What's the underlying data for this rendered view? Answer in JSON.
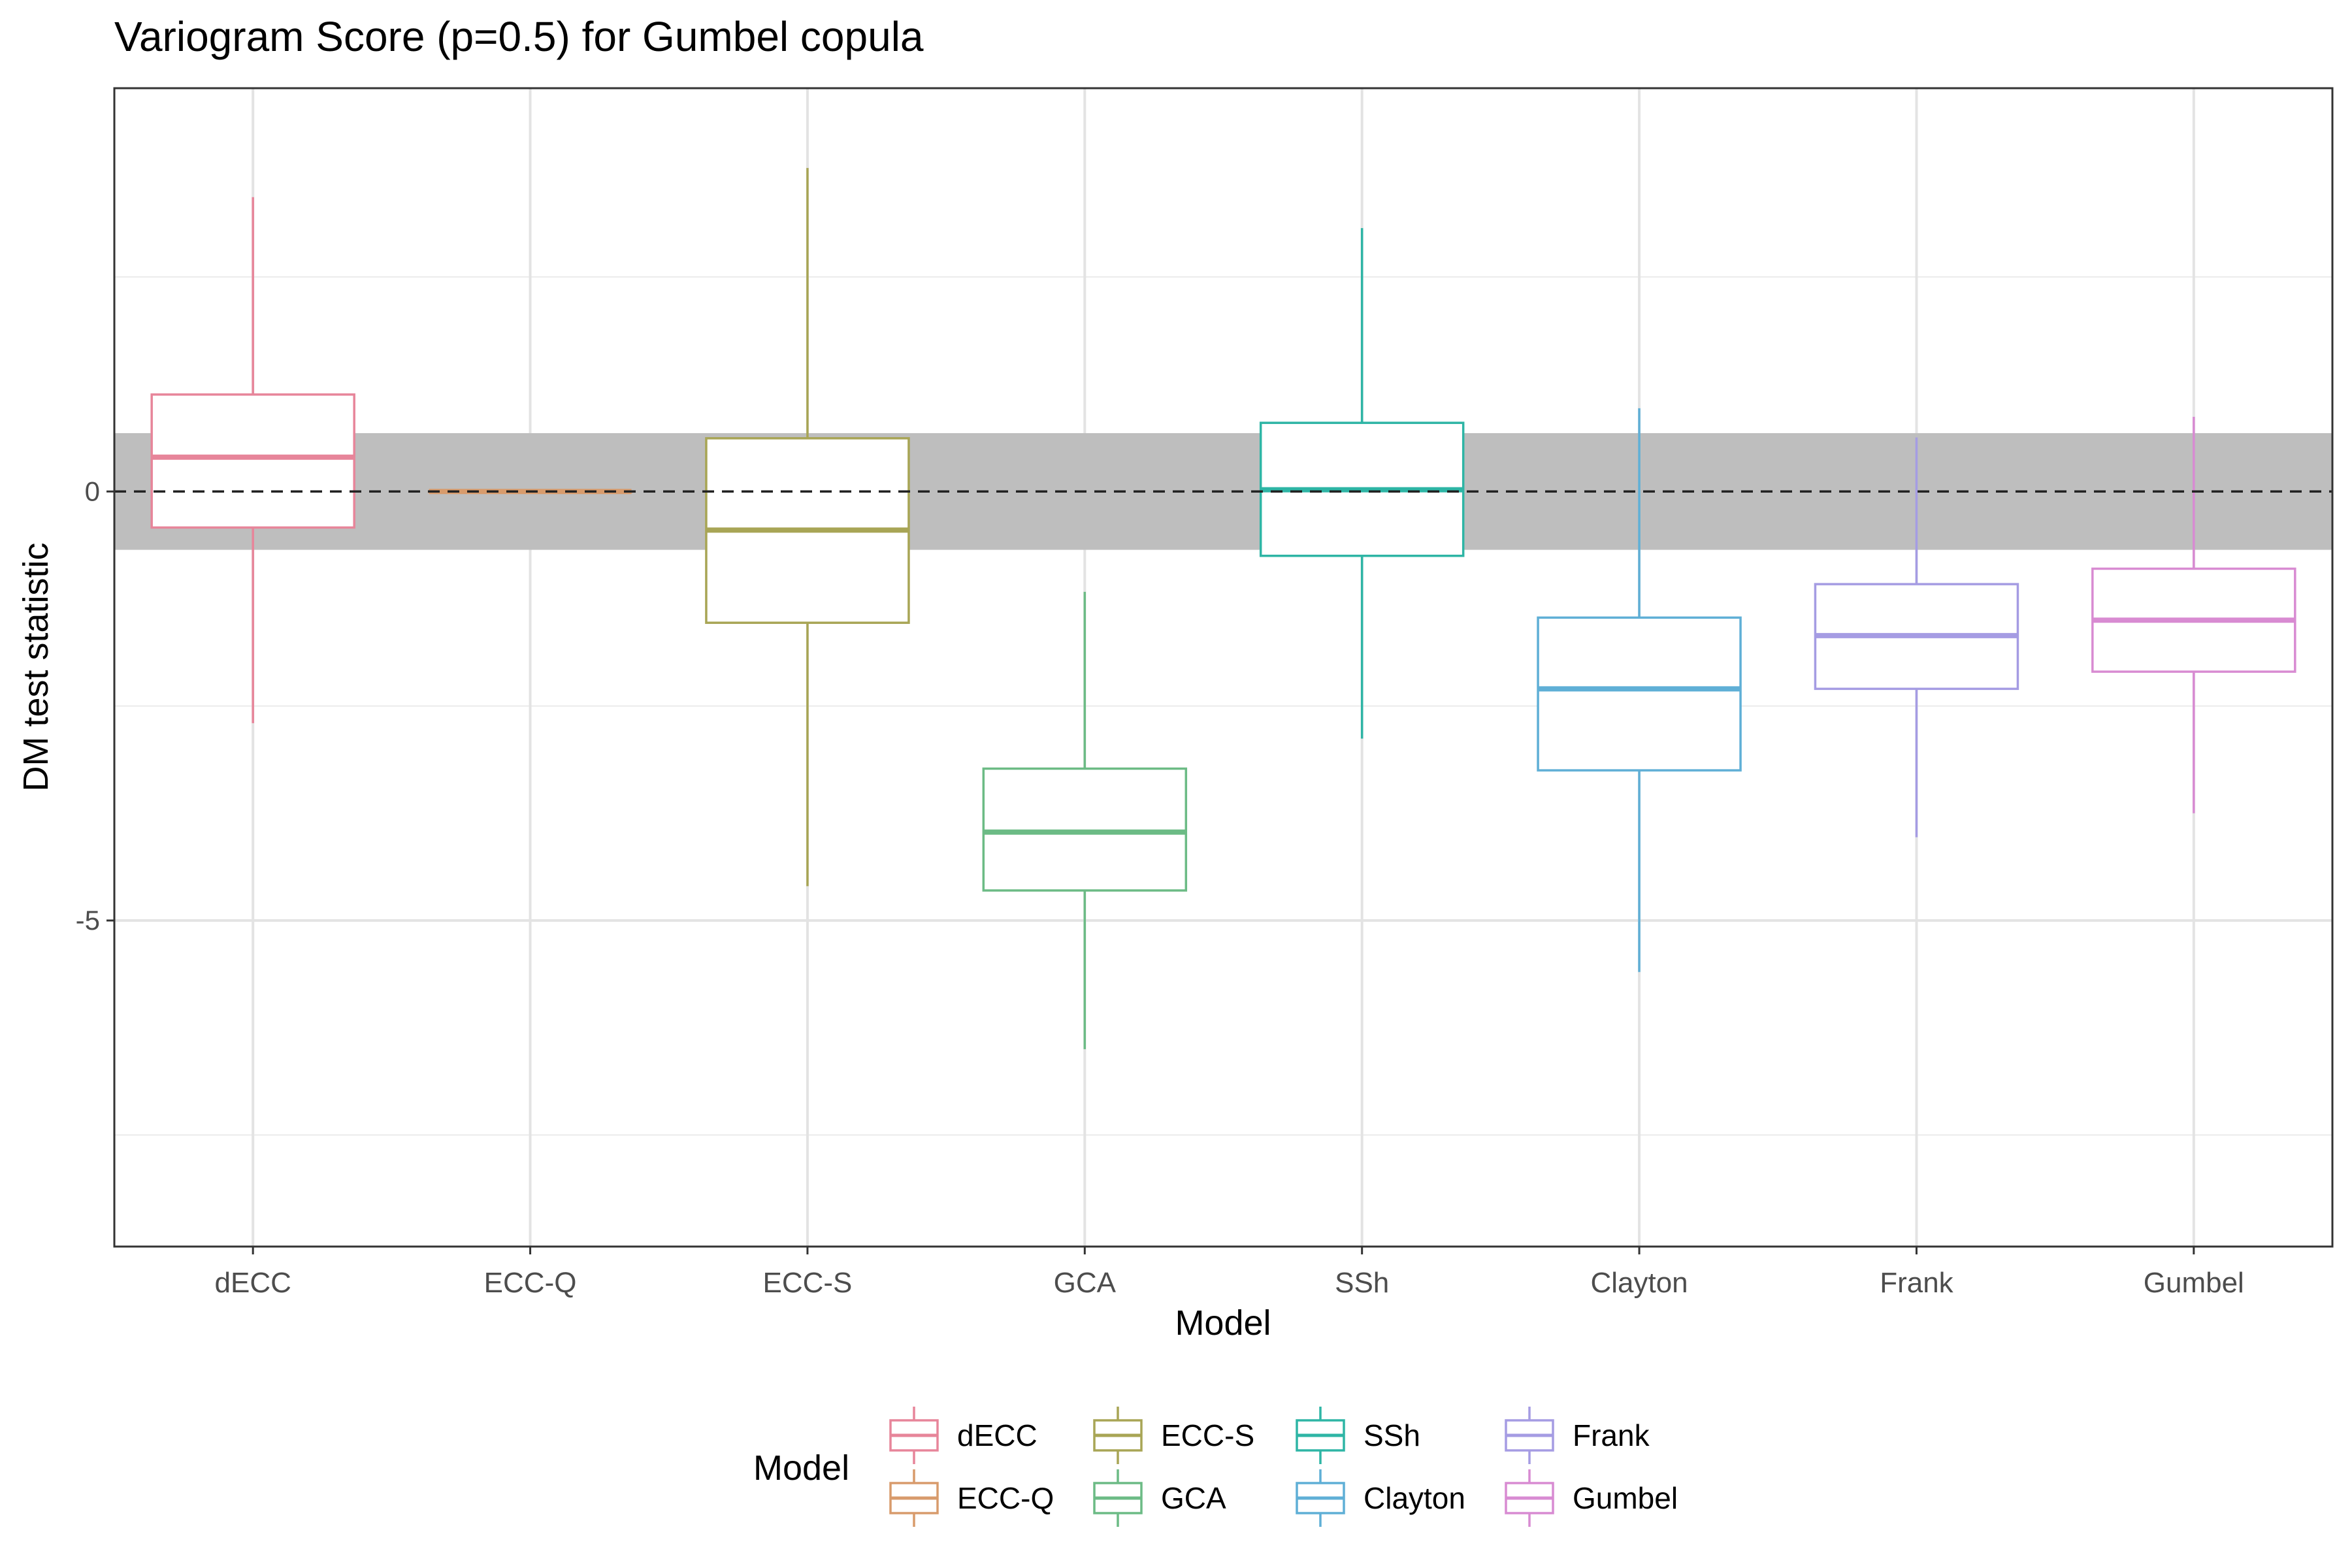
{
  "chart_data": {
    "type": "boxplot",
    "title": "Variogram Score (p=0.5) for Gumbel copula",
    "xlabel": "Model",
    "ylabel": "DM test statistic",
    "ylim": [
      -8.8,
      4.7
    ],
    "y_ticks": [
      0,
      -5
    ],
    "y_tick_labels": [
      "0",
      "-5"
    ],
    "y_minor_gridlines": [
      2.5,
      -2.5,
      -7.5
    ],
    "grid": true,
    "reference_line": 0,
    "shaded_band": [
      -0.68,
      0.68
    ],
    "categories": [
      "dECC",
      "ECC-Q",
      "ECC-S",
      "GCA",
      "SSh",
      "Clayton",
      "Frank",
      "Gumbel"
    ],
    "boxes": [
      {
        "name": "dECC",
        "color": "#E7859A",
        "whisker_low": -2.7,
        "q1": -0.42,
        "median": 0.4,
        "q3": 1.13,
        "whisker_high": 3.43
      },
      {
        "name": "ECC-Q",
        "color": "#D89B6C",
        "whisker_low": 0,
        "q1": 0,
        "median": 0,
        "q3": 0,
        "whisker_high": 0
      },
      {
        "name": "ECC-S",
        "color": "#A8A555",
        "whisker_low": -4.6,
        "q1": -1.53,
        "median": -0.45,
        "q3": 0.62,
        "whisker_high": 3.77
      },
      {
        "name": "GCA",
        "color": "#6CBB85",
        "whisker_low": -6.5,
        "q1": -4.65,
        "median": -3.97,
        "q3": -3.23,
        "whisker_high": -1.17
      },
      {
        "name": "SSh",
        "color": "#2EB5A5",
        "whisker_low": -2.88,
        "q1": -0.75,
        "median": 0.02,
        "q3": 0.8,
        "whisker_high": 3.07
      },
      {
        "name": "Clayton",
        "color": "#5FAFD6",
        "whisker_low": -5.6,
        "q1": -3.25,
        "median": -2.3,
        "q3": -1.47,
        "whisker_high": 0.97
      },
      {
        "name": "Frank",
        "color": "#A59CE3",
        "whisker_low": -4.03,
        "q1": -2.3,
        "median": -1.68,
        "q3": -1.08,
        "whisker_high": 0.63
      },
      {
        "name": "Gumbel",
        "color": "#D88BD2",
        "whisker_low": -3.75,
        "q1": -2.1,
        "median": -1.5,
        "q3": -0.9,
        "whisker_high": 0.87
      }
    ],
    "legend": {
      "title": "Model",
      "placement": "bottom",
      "entries": [
        "dECC",
        "ECC-Q",
        "ECC-S",
        "GCA",
        "SSh",
        "Clayton",
        "Frank",
        "Gumbel"
      ]
    }
  }
}
